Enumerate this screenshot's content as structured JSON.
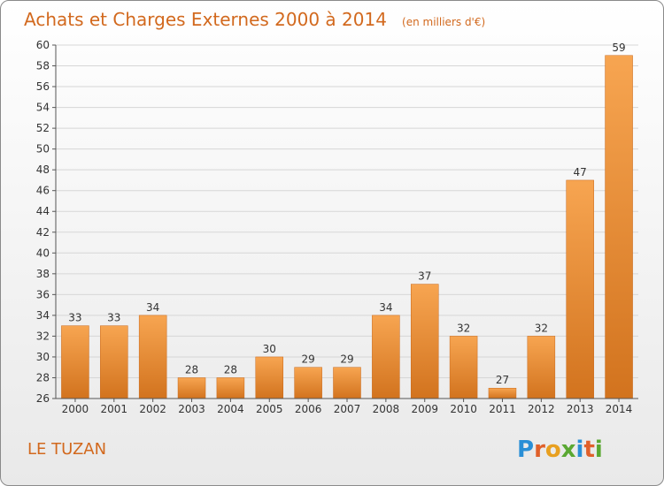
{
  "chart_data": {
    "type": "bar",
    "title": "Achats et Charges Externes 2000 à 2014",
    "subtitle": "(en milliers d'€)",
    "categories": [
      "2000",
      "2001",
      "2002",
      "2003",
      "2004",
      "2005",
      "2006",
      "2007",
      "2008",
      "2009",
      "2010",
      "2011",
      "2012",
      "2013",
      "2014"
    ],
    "values": [
      33,
      33,
      34,
      28,
      28,
      30,
      29,
      29,
      34,
      37,
      32,
      27,
      32,
      47,
      59
    ],
    "ylim": [
      26,
      60
    ],
    "ytick_step": 2,
    "grid": true,
    "bar_color": "#f0923a"
  },
  "footer": {
    "commune": "LE TUZAN",
    "logo": "Proxiti"
  }
}
